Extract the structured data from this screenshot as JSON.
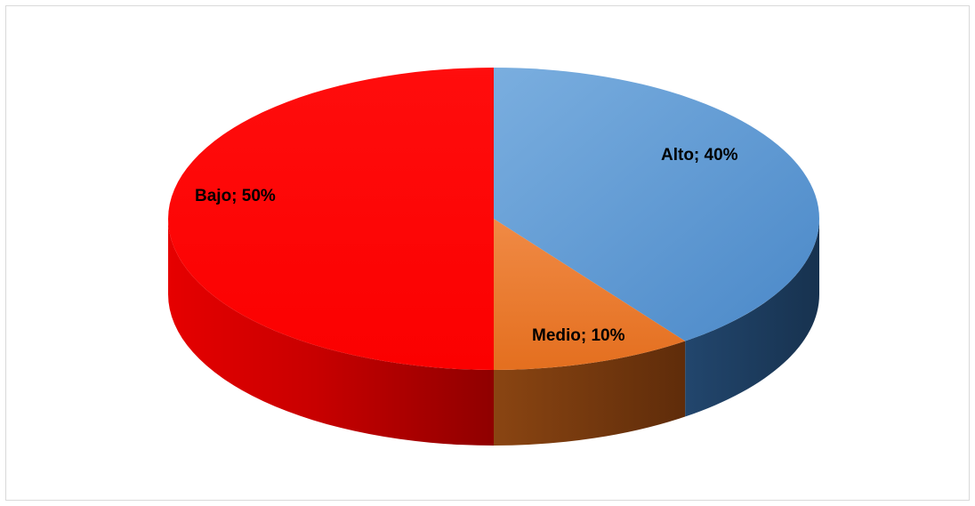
{
  "chart_data": {
    "type": "pie",
    "style": "3d",
    "categories": [
      "Alto",
      "Medio",
      "Bajo"
    ],
    "values": [
      40,
      10,
      50
    ],
    "unit": "%",
    "data_labels": [
      "Alto; 40%",
      "Medio; 10%",
      "Bajo; 50%"
    ],
    "colors": {
      "Alto": "#5b9bd5",
      "Medio": "#ed7d31",
      "Bajo": "#ff0000"
    },
    "legend": "none",
    "title": ""
  }
}
